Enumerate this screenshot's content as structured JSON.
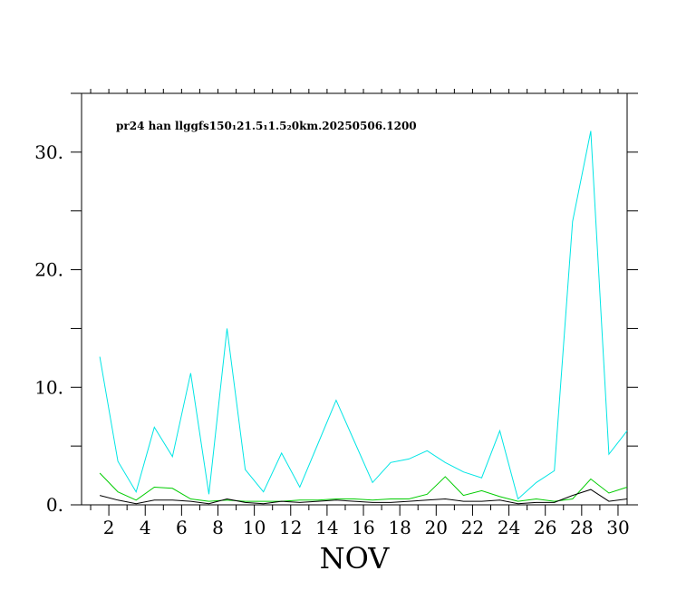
{
  "chart_data": {
    "type": "line",
    "title": "pr24 han llggfs150₁21.5₁1.5₂0km.20250506.1200",
    "xlabel": "NOV",
    "ylabel": "",
    "xlim": [
      0.5,
      30.5
    ],
    "ylim": [
      0,
      35
    ],
    "x_ticks": [
      2,
      4,
      6,
      8,
      10,
      12,
      14,
      16,
      18,
      20,
      22,
      24,
      26,
      28,
      30
    ],
    "y_ticks": [
      0,
      10,
      20,
      30
    ],
    "y_tick_labels": [
      "0.",
      "10.",
      "20.",
      "30."
    ],
    "grid": false,
    "x": [
      1.5,
      2.5,
      3.5,
      4.5,
      5.5,
      6.5,
      7.5,
      8.5,
      9.5,
      10.5,
      11.5,
      12.5,
      13.5,
      14.5,
      15.5,
      16.5,
      17.5,
      18.5,
      19.5,
      20.5,
      21.5,
      22.5,
      23.5,
      24.5,
      25.5,
      26.5,
      27.5,
      28.5,
      29.5,
      30.5
    ],
    "series": [
      {
        "color": "#00e5e5",
        "values": [
          12.6,
          3.7,
          1.1,
          6.6,
          4.1,
          11.2,
          0.9,
          15.0,
          3.0,
          1.1,
          4.4,
          1.5,
          5.2,
          8.9,
          5.4,
          1.9,
          3.6,
          3.9,
          4.6,
          3.6,
          2.8,
          2.3,
          6.3,
          0.5,
          1.9,
          2.9,
          24.1,
          31.8,
          4.3,
          6.3
        ]
      },
      {
        "color": "#00cc00",
        "values": [
          2.7,
          1.1,
          0.4,
          1.5,
          1.4,
          0.5,
          0.3,
          0.4,
          0.3,
          0.3,
          0.3,
          0.4,
          0.4,
          0.5,
          0.5,
          0.4,
          0.5,
          0.5,
          0.9,
          2.4,
          0.8,
          1.2,
          0.7,
          0.3,
          0.5,
          0.3,
          0.5,
          2.2,
          1.0,
          1.5
        ]
      },
      {
        "color": "#000000",
        "values": [
          0.8,
          0.4,
          0.1,
          0.4,
          0.4,
          0.3,
          0.1,
          0.5,
          0.2,
          0.1,
          0.3,
          0.2,
          0.3,
          0.4,
          0.3,
          0.2,
          0.2,
          0.3,
          0.4,
          0.5,
          0.3,
          0.3,
          0.4,
          0.1,
          0.2,
          0.2,
          0.8,
          1.3,
          0.3,
          0.5
        ]
      }
    ]
  }
}
